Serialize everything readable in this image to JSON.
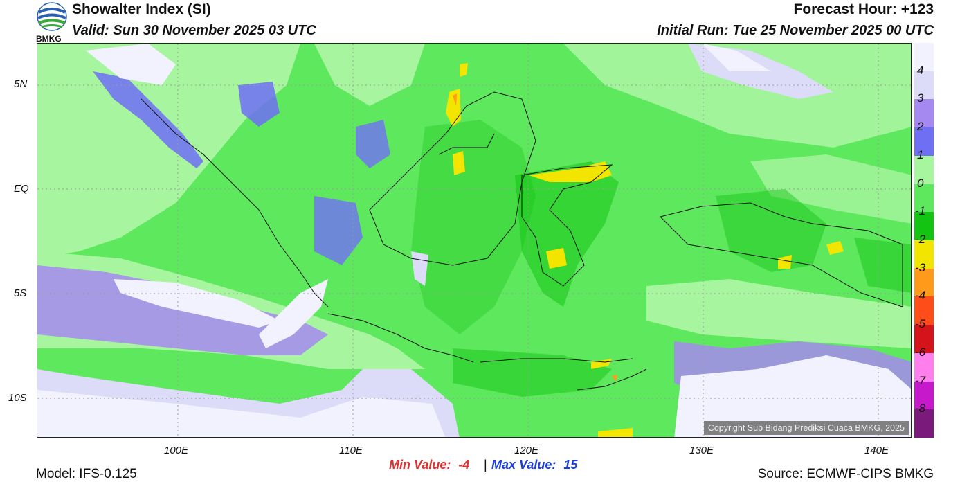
{
  "header": {
    "logo_text": "BMKG",
    "title": "Showalter Index (SI)",
    "valid": "Valid: Sun 30 November 2025 03 UTC",
    "forecast_hour": "Forecast Hour: +123",
    "initial_run": "Initial Run: Tue 25 November 2025 00 UTC"
  },
  "map": {
    "lat_ticks": [
      "5N",
      "EQ",
      "5S",
      "10S"
    ],
    "lon_ticks": [
      "100E",
      "110E",
      "120E",
      "130E",
      "140E"
    ],
    "copyright": "Copyright Sub Bidang Prediksi Cuaca BMKG, 2025"
  },
  "legend": {
    "labels": [
      "4",
      "3",
      "2",
      "1",
      "0",
      "-1",
      "-2",
      "-3",
      "-4",
      "-5",
      "-6",
      "-7",
      "-8"
    ],
    "colors": [
      "#f2f2ff",
      "#dcdcf8",
      "#a689f0",
      "#6f6ff4",
      "#a8f5a0",
      "#5ee85e",
      "#13c413",
      "#f2e600",
      "#ff9a1a",
      "#ff4d1a",
      "#d4141a",
      "#ff80ec",
      "#c619cc",
      "#7a1a7a"
    ]
  },
  "stats": {
    "min_label": "Min Value:",
    "min_value": "-4",
    "separator": "|",
    "max_label": "Max Value:",
    "max_value": "15"
  },
  "footer": {
    "model": "Model: IFS-0.125",
    "source": "Source: ECMWF-CIPS BMKG"
  }
}
